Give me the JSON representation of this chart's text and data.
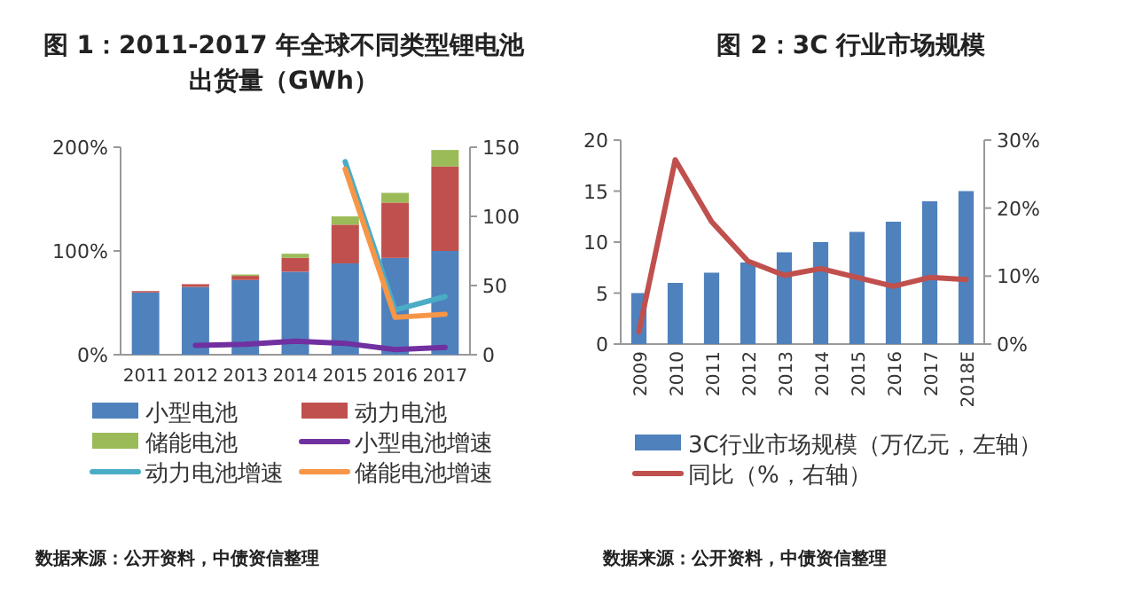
{
  "chart_data": [
    {
      "type": "bar",
      "stacked": true,
      "title": "图 1：2011-2017 年全球不同类型锂电池出货量（GWh）",
      "categories": [
        "2011",
        "2012",
        "2013",
        "2014",
        "2015",
        "2016",
        "2017"
      ],
      "series": [
        {
          "name": "小型电池",
          "color": "#4f81bd",
          "axis": "y2",
          "values": [
            45,
            49,
            54,
            60,
            66,
            70,
            75
          ]
        },
        {
          "name": "动力电池",
          "color": "#c0504d",
          "axis": "y2",
          "values": [
            1,
            2,
            3,
            10,
            28,
            40,
            61
          ]
        },
        {
          "name": "储能电池",
          "color": "#9bbb59",
          "axis": "y2",
          "values": [
            null,
            null,
            1,
            3,
            6,
            7,
            12
          ]
        },
        {
          "name": "小型电池增速",
          "type": "line",
          "color": "#7030a0",
          "values": [
            null,
            9,
            10,
            13,
            11,
            5,
            7
          ]
        },
        {
          "name": "动力电池增速",
          "type": "line",
          "color": "#4bacc6",
          "values": [
            null,
            null,
            null,
            null,
            186,
            43,
            56
          ]
        },
        {
          "name": "储能电池增速",
          "type": "line",
          "color": "#f79646",
          "values": [
            null,
            null,
            null,
            null,
            179,
            36,
            39
          ]
        }
      ],
      "ylim": [
        0,
        200
      ],
      "yticks": [
        {
          "value": 0,
          "label": "0%"
        },
        {
          "value": 100,
          "label": "100%"
        },
        {
          "value": 200,
          "label": "200%"
        }
      ],
      "y2lim": [
        0,
        150
      ],
      "y2ticks": [
        0,
        50,
        100,
        150
      ],
      "grid": false,
      "legend": "bottom",
      "annotations": [
        "数据来源：公开资料，中债资信整理"
      ]
    },
    {
      "type": "bar",
      "title": "图 2：3C 行业市场规模",
      "categories": [
        "2009",
        "2010",
        "2011",
        "2012",
        "2013",
        "2014",
        "2015",
        "2016",
        "2017",
        "2018E"
      ],
      "series": [
        {
          "name": "3C行业市场规模（万亿元，左轴）",
          "color": "#4f81bd",
          "values": [
            5,
            6,
            7,
            8,
            9,
            10,
            11,
            12,
            14,
            15
          ]
        },
        {
          "name": "同比（%，右轴）",
          "type": "line",
          "axis": "y2",
          "color": "#c0504d",
          "values": [
            1.8,
            27.1,
            18,
            12.2,
            10.1,
            11.1,
            9.8,
            8.5,
            9.8,
            9.5
          ]
        }
      ],
      "ylim": [
        0,
        20
      ],
      "yticks": [
        0,
        5,
        10,
        15,
        20
      ],
      "y2lim": [
        0,
        30
      ],
      "y2ticks": [
        {
          "value": 0,
          "label": "0%"
        },
        {
          "value": 10,
          "label": "10%"
        },
        {
          "value": 20,
          "label": "20%"
        },
        {
          "value": 30,
          "label": "30%"
        }
      ],
      "grid": false,
      "legend": "bottom",
      "annotations": [
        "数据来源：公开资料，中债资信整理"
      ]
    }
  ]
}
